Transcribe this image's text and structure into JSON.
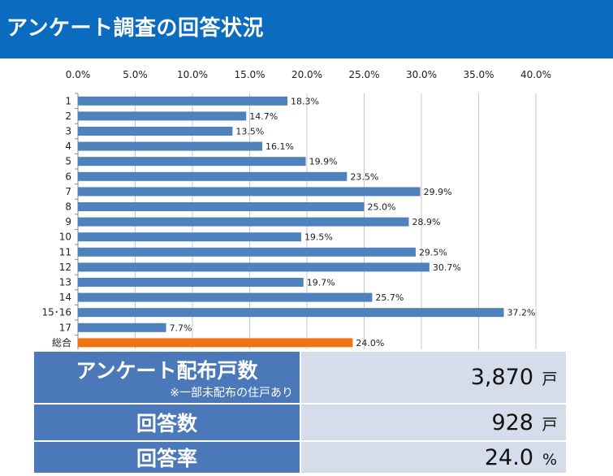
{
  "header": {
    "title": "アンケート調査の回答状況"
  },
  "colors": {
    "header_bg": "#0b6cbf",
    "bar": "#4f81bd",
    "bar_total": "#f0730f",
    "table_label_bg": "#4a78b8",
    "table_value_bg": "#d5ddeb"
  },
  "chart_data": {
    "type": "bar",
    "orientation": "horizontal",
    "title": "",
    "xlabel": "",
    "ylabel": "",
    "xlim": [
      0,
      40
    ],
    "x_ticks": [
      "0.0%",
      "5.0%",
      "10.0%",
      "15.0%",
      "20.0%",
      "25.0%",
      "30.0%",
      "35.0%",
      "40.0%"
    ],
    "categories": [
      "1",
      "2",
      "3",
      "4",
      "5",
      "6",
      "7",
      "8",
      "9",
      "10",
      "11",
      "12",
      "13",
      "14",
      "15･16",
      "17",
      "総合"
    ],
    "values": [
      18.3,
      14.7,
      13.5,
      16.1,
      19.9,
      23.5,
      29.9,
      25.0,
      28.9,
      19.5,
      29.5,
      30.7,
      19.7,
      25.7,
      37.2,
      7.7,
      24.0
    ],
    "labels": [
      "18.3%",
      "14.7%",
      "13.5%",
      "16.1%",
      "19.9%",
      "23.5%",
      "29.9%",
      "25.0%",
      "28.9%",
      "19.5%",
      "29.5%",
      "30.7%",
      "19.7%",
      "25.7%",
      "37.2%",
      "7.7%",
      "24.0%"
    ],
    "highlight_category": "総合",
    "grid": true,
    "legend": "none"
  },
  "summary": {
    "rows": [
      {
        "label": "アンケート配布戸数",
        "note": "※一部未配布の住戸あり",
        "value": "3,870",
        "unit": "戸"
      },
      {
        "label": "回答数",
        "note": "",
        "value": "928",
        "unit": "戸"
      },
      {
        "label": "回答率",
        "note": "",
        "value": "24.0",
        "unit": "%"
      }
    ]
  }
}
